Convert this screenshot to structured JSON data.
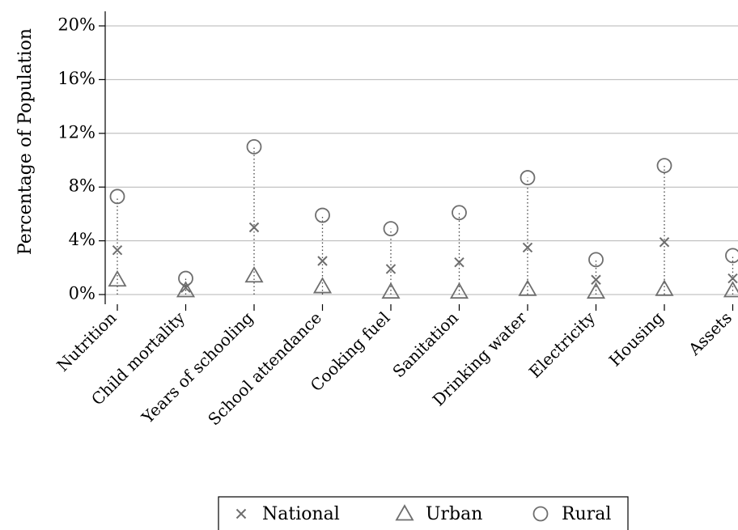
{
  "chart_data": {
    "type": "scatter",
    "ylabel": "Percentage of Population",
    "ylim": [
      0,
      20
    ],
    "yticks": [
      0,
      4,
      8,
      12,
      16,
      20
    ],
    "ytick_labels": [
      "0%",
      "4%",
      "8%",
      "12%",
      "16%",
      "20%"
    ],
    "grid": true,
    "legend_position": "bottom",
    "categories": [
      "Nutrition",
      "Child mortality",
      "Years of schooling",
      "School attendance",
      "Cooking fuel",
      "Sanitation",
      "Drinking water",
      "Electricity",
      "Housing",
      "Assets"
    ],
    "series": [
      {
        "name": "National",
        "marker": "x",
        "values": [
          3.3,
          0.5,
          5.0,
          2.5,
          1.9,
          2.4,
          3.5,
          1.1,
          3.9,
          1.2
        ]
      },
      {
        "name": "Urban",
        "marker": "triangle",
        "values": [
          1.1,
          0.3,
          1.4,
          0.6,
          0.2,
          0.2,
          0.4,
          0.2,
          0.4,
          0.3
        ]
      },
      {
        "name": "Rural",
        "marker": "circle",
        "values": [
          7.3,
          1.2,
          11.0,
          5.9,
          4.9,
          6.1,
          8.7,
          2.6,
          9.6,
          2.9
        ]
      }
    ],
    "colors": {
      "marker": "#6e6e6e",
      "grid": "#b4b4b4",
      "axis": "#000000",
      "connector": "#444444"
    }
  }
}
